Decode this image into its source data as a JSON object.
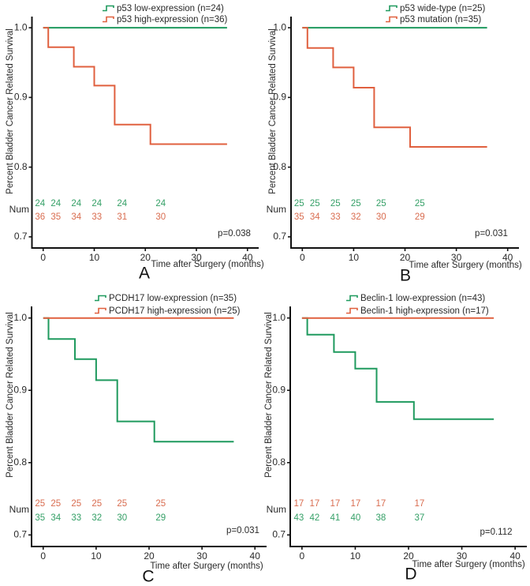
{
  "figure": {
    "description": "Kaplan-Meier survival curves, four panels A-D"
  },
  "chart_data": [
    {
      "type": "line",
      "subtype": "kaplan-meier-step",
      "panel_label": "A",
      "title": "",
      "xlabel": "Time after Surgery (months)",
      "ylabel": "Percent Bladder Cancer Related Survival",
      "xlim": [
        -2.2,
        42.2
      ],
      "ylim": [
        0.684,
        1.016
      ],
      "xticks": [
        0,
        10,
        20,
        30,
        40
      ],
      "xtick_labels": [
        "0",
        "10",
        "20",
        "30",
        "40"
      ],
      "yticks": [
        0.7,
        0.8,
        0.9,
        1.0
      ],
      "ytick_labels": [
        "0.7",
        "0.8",
        "0.9",
        "1.0"
      ],
      "grid": false,
      "legend_position": "top",
      "series": [
        {
          "name": "p53 low-expression (n=24)",
          "color": "#1f9a5e",
          "times": [
            0,
            36
          ],
          "survival": [
            1.0,
            1.0
          ]
        },
        {
          "name": "p53 high-expression (n=36)",
          "color": "#e0603f",
          "times": [
            0,
            1,
            6,
            10,
            14,
            21,
            36
          ],
          "survival": [
            1.0,
            0.972,
            0.944,
            0.917,
            0.861,
            0.833,
            0.833
          ]
        }
      ],
      "at_risk_label": "Num",
      "at_risk": [
        {
          "color": "#35a067",
          "counts": [
            "24",
            "24",
            "24",
            "24",
            "24",
            "24"
          ]
        },
        {
          "color": "#d96d50",
          "counts": [
            "36",
            "35",
            "34",
            "33",
            "31",
            "30"
          ]
        }
      ],
      "p_value": "p=0.038"
    },
    {
      "type": "line",
      "subtype": "kaplan-meier-step",
      "panel_label": "B",
      "title": "",
      "xlabel": "Time after Surgery (months)",
      "ylabel": "Percent Bladder Cancer Related Survival",
      "xlim": [
        -2.2,
        42.2
      ],
      "ylim": [
        0.684,
        1.016
      ],
      "xticks": [
        0,
        10,
        20,
        30,
        40
      ],
      "xtick_labels": [
        "0",
        "10",
        "20",
        "30",
        "40"
      ],
      "yticks": [
        0.7,
        0.8,
        0.9,
        1.0
      ],
      "ytick_labels": [
        "0.7",
        "0.8",
        "0.9",
        "1.0"
      ],
      "grid": false,
      "legend_position": "top",
      "series": [
        {
          "name": "p53 wide-type (n=25)",
          "color": "#1f9a5e",
          "times": [
            0,
            36
          ],
          "survival": [
            1.0,
            1.0
          ]
        },
        {
          "name": "p53 mutation (n=35)",
          "color": "#e0603f",
          "times": [
            0,
            1,
            6,
            10,
            14,
            21,
            36
          ],
          "survival": [
            1.0,
            0.971,
            0.943,
            0.914,
            0.857,
            0.829,
            0.829
          ]
        }
      ],
      "at_risk_label": "Num",
      "at_risk": [
        {
          "color": "#35a067",
          "counts": [
            "25",
            "25",
            "25",
            "25",
            "25",
            "25"
          ]
        },
        {
          "color": "#d96d50",
          "counts": [
            "35",
            "34",
            "33",
            "32",
            "30",
            "29"
          ]
        }
      ],
      "p_value": "p=0.031"
    },
    {
      "type": "line",
      "subtype": "kaplan-meier-step",
      "panel_label": "C",
      "title": "",
      "xlabel": "Time after Surgery (months)",
      "ylabel": "Percent Bladder Cancer Related Survival",
      "xlim": [
        -2.2,
        42.2
      ],
      "ylim": [
        0.684,
        1.016
      ],
      "xticks": [
        0,
        10,
        20,
        30,
        40
      ],
      "xtick_labels": [
        "0",
        "10",
        "20",
        "30",
        "40"
      ],
      "yticks": [
        0.7,
        0.8,
        0.9,
        1.0
      ],
      "ytick_labels": [
        "0.7",
        "0.8",
        "0.9",
        "1.0"
      ],
      "grid": false,
      "legend_position": "top",
      "series": [
        {
          "name": "PCDH17 low-expression (n=35)",
          "color": "#1f9a5e",
          "times": [
            0,
            1,
            6,
            10,
            14,
            21,
            36
          ],
          "survival": [
            1.0,
            0.971,
            0.943,
            0.914,
            0.857,
            0.829,
            0.829
          ]
        },
        {
          "name": "PCDH17 high-expression (n=25)",
          "color": "#e0603f",
          "times": [
            0,
            36
          ],
          "survival": [
            1.0,
            1.0
          ]
        }
      ],
      "at_risk_label": "Num",
      "at_risk": [
        {
          "color": "#d96d50",
          "counts": [
            "25",
            "25",
            "25",
            "25",
            "25",
            "25"
          ]
        },
        {
          "color": "#35a067",
          "counts": [
            "35",
            "34",
            "33",
            "32",
            "30",
            "29"
          ]
        }
      ],
      "p_value": "p=0.031"
    },
    {
      "type": "line",
      "subtype": "kaplan-meier-step",
      "panel_label": "D",
      "title": "",
      "xlabel": "Time after Surgery (months)",
      "ylabel": "Percent Bladder Cancer Related Survival",
      "xlim": [
        -2.2,
        42.2
      ],
      "ylim": [
        0.684,
        1.016
      ],
      "xticks": [
        0,
        10,
        20,
        30,
        40
      ],
      "xtick_labels": [
        "0",
        "10",
        "20",
        "30",
        "40"
      ],
      "yticks": [
        0.7,
        0.8,
        0.9,
        1.0
      ],
      "ytick_labels": [
        "0.7",
        "0.8",
        "0.9",
        "1.0"
      ],
      "grid": false,
      "legend_position": "top",
      "series": [
        {
          "name": "Beclin-1 low-expression (n=43)",
          "color": "#1f9a5e",
          "times": [
            0,
            1,
            6,
            10,
            14,
            21,
            36
          ],
          "survival": [
            1.0,
            0.977,
            0.953,
            0.93,
            0.884,
            0.86,
            0.86
          ]
        },
        {
          "name": "Beclin-1 high-expression (n=17)",
          "color": "#e0603f",
          "times": [
            0,
            36
          ],
          "survival": [
            1.0,
            1.0
          ]
        }
      ],
      "at_risk_label": "Num",
      "at_risk": [
        {
          "color": "#d96d50",
          "counts": [
            "17",
            "17",
            "17",
            "17",
            "17",
            "17"
          ]
        },
        {
          "color": "#35a067",
          "counts": [
            "43",
            "42",
            "41",
            "40",
            "38",
            "37"
          ]
        }
      ],
      "p_value": "p=0.112"
    }
  ]
}
